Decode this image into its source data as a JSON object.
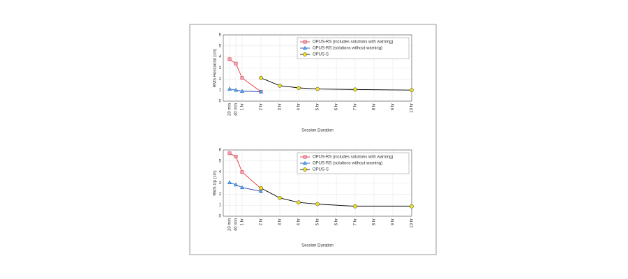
{
  "chart_data": [
    {
      "type": "line",
      "ylabel": "RMS Horizontal (cm)",
      "xlabel": "Session Duration",
      "x": [
        0.333,
        0.667,
        1,
        2,
        3,
        4,
        5,
        7,
        10
      ],
      "series": [
        {
          "name": "OPUS-RS (includes solutions with warning)",
          "color": "#e03232",
          "marker": "square",
          "marker_color": "#e8a0c0",
          "values": [
            3.8,
            3.4,
            2.1,
            0.85,
            null,
            null,
            null,
            null,
            null
          ]
        },
        {
          "name": "OPUS-RS (solutions without warning)",
          "color": "#3048c0",
          "marker": "triangle",
          "marker_color": "#40b8e8",
          "values": [
            1.1,
            1.0,
            0.9,
            0.85,
            null,
            null,
            null,
            null,
            null
          ]
        },
        {
          "name": "OPUS-S",
          "color": "#000000",
          "marker": "circle",
          "marker_color": "#f0e020",
          "values": [
            null,
            null,
            null,
            2.1,
            1.4,
            1.2,
            1.1,
            1.05,
            1.0
          ]
        }
      ],
      "xlim": [
        0,
        10
      ],
      "ylim": [
        0,
        6
      ],
      "yticks": [
        0,
        1,
        2,
        3,
        4,
        5,
        6
      ],
      "xticks": [
        {
          "value": 0.333,
          "label": "20 min"
        },
        {
          "value": 0.667,
          "label": "40 min"
        },
        {
          "value": 1,
          "label": "1 hr"
        },
        {
          "value": 2,
          "label": "2 hr"
        },
        {
          "value": 3,
          "label": "3 hr"
        },
        {
          "value": 4,
          "label": "4 hr"
        },
        {
          "value": 5,
          "label": "5 hr"
        },
        {
          "value": 6,
          "label": "6 hr"
        },
        {
          "value": 7,
          "label": "7 hr"
        },
        {
          "value": 8,
          "label": "8 hr"
        },
        {
          "value": 9,
          "label": "9 hr"
        },
        {
          "value": 10,
          "label": "10 hr"
        }
      ],
      "grid": true,
      "legend": "upper right"
    },
    {
      "type": "line",
      "ylabel": "RMS Up (cm)",
      "xlabel": "Session Duration",
      "x": [
        0.333,
        0.667,
        1,
        2,
        3,
        4,
        5,
        7,
        10
      ],
      "series": [
        {
          "name": "OPUS-RS (includes solutions with warning)",
          "color": "#e03232",
          "marker": "square",
          "marker_color": "#e8a0c0",
          "values": [
            5.7,
            5.4,
            4.0,
            2.5,
            null,
            null,
            null,
            null,
            null
          ]
        },
        {
          "name": "OPUS-RS (solutions without warning)",
          "color": "#3048c0",
          "marker": "triangle",
          "marker_color": "#40b8e8",
          "values": [
            3.05,
            2.85,
            2.6,
            2.25,
            null,
            null,
            null,
            null,
            null
          ]
        },
        {
          "name": "OPUS-S",
          "color": "#000000",
          "marker": "circle",
          "marker_color": "#f0e020",
          "values": [
            null,
            null,
            null,
            2.55,
            1.65,
            1.25,
            1.1,
            0.9,
            0.9
          ]
        }
      ],
      "xlim": [
        0,
        10
      ],
      "ylim": [
        0,
        6
      ],
      "yticks": [
        0,
        1,
        2,
        3,
        4,
        5,
        6
      ],
      "xticks": [
        {
          "value": 0.333,
          "label": "20 min"
        },
        {
          "value": 0.667,
          "label": "40 min"
        },
        {
          "value": 1,
          "label": "1 hr"
        },
        {
          "value": 2,
          "label": "2 hr"
        },
        {
          "value": 3,
          "label": "3 hr"
        },
        {
          "value": 4,
          "label": "4 hr"
        },
        {
          "value": 5,
          "label": "5 hr"
        },
        {
          "value": 6,
          "label": "6 hr"
        },
        {
          "value": 7,
          "label": "7 hr"
        },
        {
          "value": 8,
          "label": "8 hr"
        },
        {
          "value": 9,
          "label": "9 hr"
        },
        {
          "value": 10,
          "label": "10 hr"
        }
      ],
      "grid": true,
      "legend": "upper right"
    }
  ]
}
